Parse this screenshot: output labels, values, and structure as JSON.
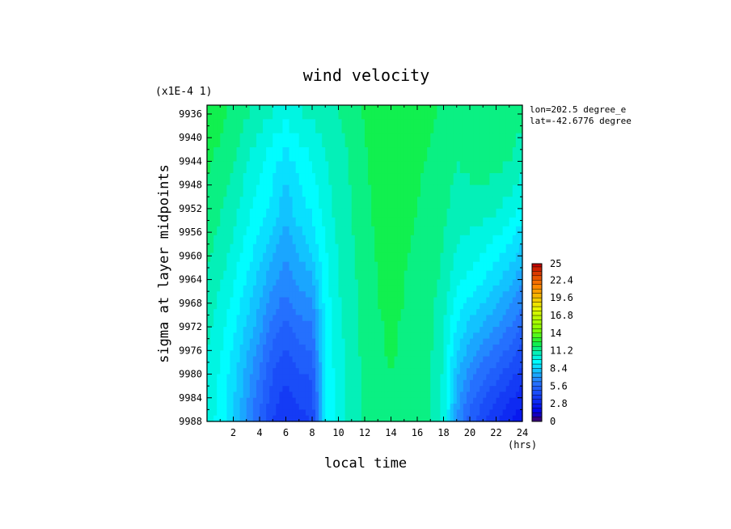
{
  "chart_data": {
    "type": "heatmap",
    "title": "wind velocity",
    "xlabel": "local time",
    "x_unit": "(hrs)",
    "ylabel": "sigma at layer midpoints",
    "y_scale_note": "(x1E-4 1)",
    "annotation": [
      "lon=202.5 degree_e",
      "lat=-42.6776 degree"
    ],
    "xlim": [
      0,
      24
    ],
    "x_ticks": [
      2,
      4,
      6,
      8,
      10,
      12,
      14,
      16,
      18,
      20,
      22,
      24
    ],
    "y_ticks": [
      9936,
      9940,
      9944,
      9948,
      9952,
      9956,
      9960,
      9964,
      9968,
      9972,
      9976,
      9980,
      9984,
      9988
    ],
    "ylim": [
      9934.5,
      9988
    ],
    "colorbar": {
      "min": 0,
      "max": 25,
      "step": 0.7,
      "tick_values": [
        0,
        2.8,
        5.6,
        8.4,
        11.2,
        14,
        16.8,
        19.6,
        22.4,
        25
      ],
      "tick_labels": [
        "0",
        "2.8",
        "5.6",
        "8.4",
        "11.2",
        "14",
        "16.8",
        "19.6",
        "22.4",
        "25"
      ]
    },
    "grid": {
      "x": [
        0,
        1,
        2,
        3,
        4,
        5,
        6,
        7,
        8,
        9,
        10,
        11,
        12,
        13,
        14,
        15,
        16,
        17,
        18,
        19,
        20,
        21,
        22,
        23,
        24
      ],
      "y": [
        9934.5,
        9944,
        9952,
        9958,
        9964,
        9968,
        9972,
        9976,
        9980,
        9984,
        9988
      ],
      "values": [
        [
          12.5,
          12.2,
          11.8,
          11.4,
          11.0,
          10.6,
          10.2,
          10.6,
          10.8,
          11.0,
          11.2,
          11.5,
          12.0,
          12.4,
          12.6,
          12.4,
          12.2,
          12.0,
          11.8,
          11.6,
          11.8,
          11.9,
          11.9,
          11.7,
          11.5
        ],
        [
          12.0,
          11.7,
          11.2,
          10.6,
          10.0,
          9.4,
          8.8,
          9.4,
          9.8,
          10.4,
          10.9,
          11.3,
          11.8,
          12.2,
          12.4,
          12.2,
          12.0,
          11.8,
          11.6,
          11.2,
          11.4,
          11.5,
          11.5,
          11.2,
          10.8
        ],
        [
          11.7,
          11.3,
          10.7,
          10.1,
          9.4,
          8.8,
          8.0,
          8.8,
          9.2,
          10.1,
          10.8,
          11.2,
          11.7,
          12.1,
          12.3,
          12.1,
          11.9,
          11.7,
          11.4,
          10.9,
          10.9,
          10.8,
          10.6,
          10.2,
          9.6
        ],
        [
          11.4,
          11.0,
          10.4,
          9.6,
          8.9,
          8.1,
          7.2,
          8.0,
          8.6,
          9.8,
          10.6,
          11.1,
          11.6,
          12.0,
          12.2,
          12.0,
          11.8,
          11.6,
          11.2,
          10.5,
          10.3,
          10.0,
          9.6,
          9.1,
          8.4
        ],
        [
          11.1,
          10.6,
          9.9,
          9.1,
          8.2,
          7.2,
          6.6,
          7.2,
          7.6,
          9.5,
          10.5,
          11.0,
          11.5,
          11.9,
          12.1,
          11.9,
          11.7,
          11.5,
          11.0,
          10.0,
          9.6,
          9.2,
          8.6,
          8.0,
          7.2
        ],
        [
          10.9,
          10.3,
          9.6,
          8.7,
          7.7,
          6.6,
          6.0,
          6.6,
          6.9,
          9.4,
          10.4,
          11.0,
          11.5,
          11.9,
          12.1,
          11.9,
          11.7,
          11.4,
          10.8,
          9.5,
          8.9,
          8.4,
          7.8,
          7.1,
          6.3
        ],
        [
          10.7,
          10.1,
          9.3,
          8.3,
          7.3,
          6.0,
          5.4,
          6.0,
          6.2,
          9.3,
          10.3,
          10.9,
          11.4,
          11.8,
          12.0,
          11.8,
          11.6,
          11.3,
          10.6,
          9.1,
          8.2,
          7.6,
          7.0,
          6.3,
          5.5
        ],
        [
          10.5,
          9.9,
          9.0,
          7.9,
          6.7,
          5.4,
          4.8,
          5.4,
          5.6,
          9.2,
          10.2,
          10.9,
          11.4,
          11.8,
          12.0,
          11.8,
          11.6,
          11.3,
          10.5,
          8.5,
          7.4,
          6.7,
          6.1,
          5.4,
          4.7
        ],
        [
          10.4,
          9.7,
          8.7,
          7.5,
          6.2,
          4.9,
          4.3,
          4.8,
          5.0,
          9.1,
          10.2,
          10.8,
          11.3,
          11.7,
          11.9,
          11.7,
          11.5,
          11.2,
          10.4,
          7.9,
          6.6,
          5.8,
          5.2,
          4.5,
          3.9
        ],
        [
          10.3,
          9.6,
          8.5,
          7.2,
          5.8,
          4.5,
          3.9,
          4.3,
          4.5,
          9.0,
          10.1,
          10.8,
          11.3,
          11.7,
          11.9,
          11.7,
          11.5,
          11.2,
          10.3,
          7.4,
          5.9,
          5.0,
          4.3,
          3.6,
          3.1
        ],
        [
          10.2,
          9.5,
          8.4,
          7.0,
          5.5,
          4.2,
          3.6,
          4.0,
          4.2,
          9.0,
          10.1,
          10.8,
          11.3,
          11.7,
          11.9,
          11.7,
          11.5,
          11.2,
          10.2,
          7.0,
          5.3,
          4.3,
          3.5,
          2.8,
          2.3
        ]
      ]
    }
  }
}
